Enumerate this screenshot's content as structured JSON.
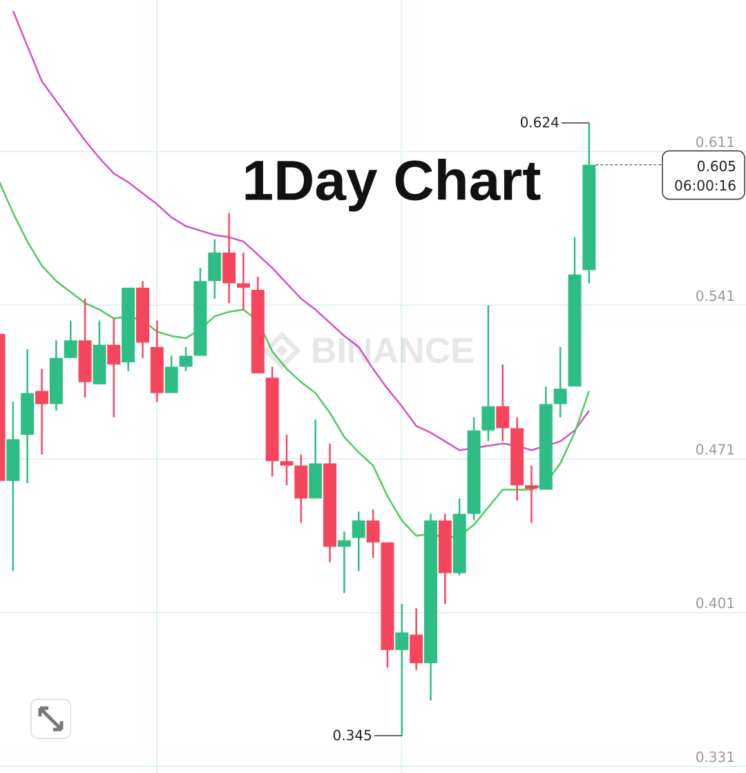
{
  "chart_data": {
    "type": "candlestick",
    "title": "1Day Chart",
    "watermark": "BINANCE",
    "countdown": "06:00:16",
    "open": [
      0.528,
      0.461,
      0.482,
      0.502,
      0.496,
      0.517,
      0.525,
      0.505,
      0.523,
      0.515,
      0.549,
      0.522,
      0.501,
      0.513,
      0.518,
      0.552,
      0.565,
      0.551,
      0.548,
      0.508,
      0.47,
      0.468,
      0.453,
      0.469,
      0.431,
      0.435,
      0.443,
      0.433,
      0.384,
      0.391,
      0.378,
      0.443,
      0.419,
      0.446,
      0.484,
      0.495,
      0.485,
      0.459,
      0.457,
      0.496,
      0.504,
      0.557
    ],
    "high": [
      0.528,
      0.497,
      0.521,
      0.512,
      0.525,
      0.534,
      0.544,
      0.534,
      0.535,
      0.549,
      0.552,
      0.534,
      0.518,
      0.522,
      0.558,
      0.571,
      0.583,
      0.565,
      0.554,
      0.513,
      0.482,
      0.473,
      0.489,
      0.478,
      0.438,
      0.447,
      0.448,
      0.433,
      0.405,
      0.403,
      0.446,
      0.446,
      0.453,
      0.49,
      0.541,
      0.514,
      0.49,
      0.468,
      0.504,
      0.522,
      0.572,
      0.624
    ],
    "low": [
      0.461,
      0.42,
      0.46,
      0.473,
      0.493,
      0.517,
      0.499,
      0.505,
      0.49,
      0.511,
      0.517,
      0.497,
      0.501,
      0.511,
      0.518,
      0.544,
      0.542,
      0.539,
      0.51,
      0.463,
      0.459,
      0.442,
      0.453,
      0.424,
      0.41,
      0.42,
      0.426,
      0.376,
      0.345,
      0.375,
      0.361,
      0.405,
      0.418,
      0.443,
      0.479,
      0.479,
      0.452,
      0.442,
      0.457,
      0.49,
      0.504,
      0.551
    ],
    "close": [
      0.461,
      0.48,
      0.501,
      0.496,
      0.517,
      0.525,
      0.506,
      0.523,
      0.514,
      0.549,
      0.524,
      0.501,
      0.513,
      0.518,
      0.552,
      0.565,
      0.551,
      0.549,
      0.51,
      0.47,
      0.468,
      0.453,
      0.469,
      0.431,
      0.434,
      0.443,
      0.433,
      0.384,
      0.392,
      0.378,
      0.443,
      0.419,
      0.446,
      0.484,
      0.495,
      0.485,
      0.459,
      0.458,
      0.496,
      0.503,
      0.555,
      0.605
    ],
    "up_color": "#2ebd85",
    "down_color": "#f6465d",
    "series": [
      {
        "color": "#d64fc4",
        "values": [
          null,
          0.675,
          0.659,
          0.643,
          0.634,
          0.625,
          0.616,
          0.608,
          0.601,
          0.597,
          0.592,
          0.587,
          0.581,
          0.577,
          0.575,
          0.573,
          0.572,
          0.57,
          0.564,
          0.558,
          0.551,
          0.544,
          0.539,
          0.533,
          0.527,
          0.522,
          0.512,
          0.503,
          0.495,
          0.486,
          0.483,
          0.479,
          0.475,
          0.476,
          0.477,
          0.478,
          0.477,
          0.475,
          0.477,
          0.479,
          0.484,
          0.493
        ]
      },
      {
        "color": "#4cca5c",
        "values": [
          0.598,
          0.583,
          0.57,
          0.559,
          0.552,
          0.547,
          0.542,
          0.539,
          0.535,
          0.536,
          0.534,
          0.529,
          0.527,
          0.526,
          0.53,
          0.536,
          0.538,
          0.539,
          0.534,
          0.52,
          0.512,
          0.506,
          0.501,
          0.492,
          0.481,
          0.474,
          0.468,
          0.454,
          0.443,
          0.436,
          0.437,
          0.435,
          0.436,
          0.441,
          0.449,
          0.457,
          0.457,
          0.457,
          0.46,
          0.469,
          0.483,
          0.502
        ]
      }
    ],
    "ylim": [
      0.328,
      0.68
    ],
    "yticks": [
      0.331,
      0.401,
      0.471,
      0.541,
      0.611
    ],
    "grid": true
  }
}
